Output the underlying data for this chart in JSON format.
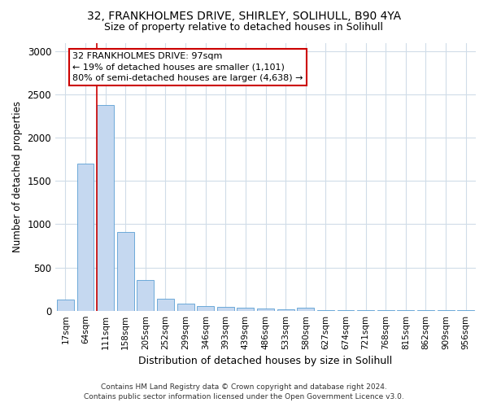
{
  "title1": "32, FRANKHOLMES DRIVE, SHIRLEY, SOLIHULL, B90 4YA",
  "title2": "Size of property relative to detached houses in Solihull",
  "xlabel": "Distribution of detached houses by size in Solihull",
  "ylabel": "Number of detached properties",
  "categories": [
    "17sqm",
    "64sqm",
    "111sqm",
    "158sqm",
    "205sqm",
    "252sqm",
    "299sqm",
    "346sqm",
    "393sqm",
    "439sqm",
    "486sqm",
    "533sqm",
    "580sqm",
    "627sqm",
    "674sqm",
    "721sqm",
    "768sqm",
    "815sqm",
    "862sqm",
    "909sqm",
    "956sqm"
  ],
  "values": [
    130,
    1700,
    2380,
    910,
    355,
    140,
    80,
    55,
    45,
    30,
    25,
    20,
    35,
    8,
    5,
    5,
    3,
    3,
    3,
    3,
    3
  ],
  "bar_color": "#c5d8f0",
  "bar_edge_color": "#5a9fd4",
  "ylim": [
    0,
    3100
  ],
  "yticks": [
    0,
    500,
    1000,
    1500,
    2000,
    2500,
    3000
  ],
  "vline_color": "#cc0000",
  "annotation_text": "32 FRANKHOLMES DRIVE: 97sqm\n← 19% of detached houses are smaller (1,101)\n80% of semi-detached houses are larger (4,638) →",
  "annotation_box_color": "#ffffff",
  "annotation_box_edge": "#cc0000",
  "footer1": "Contains HM Land Registry data © Crown copyright and database right 2024.",
  "footer2": "Contains public sector information licensed under the Open Government Licence v3.0.",
  "bg_color": "#ffffff",
  "plot_bg_color": "#ffffff",
  "grid_color": "#d0dce8"
}
